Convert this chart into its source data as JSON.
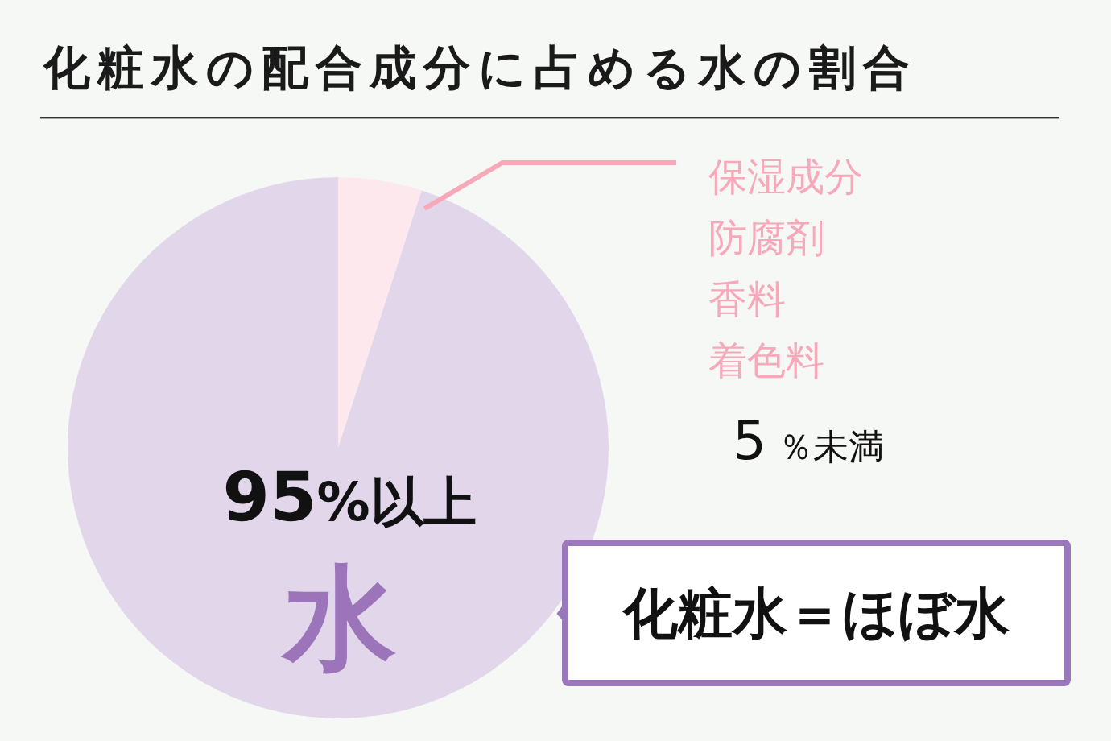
{
  "chart_data": {
    "type": "pie",
    "title": "化粧水の配合成分に占める水の割合",
    "categories": [
      "保湿成分防腐剤香料着色料",
      "水"
    ],
    "values": [
      5,
      95
    ],
    "colors": [
      "#fde9ed",
      "#e1d6ea"
    ],
    "value_labels": [
      "5 ％未満",
      "95%以上"
    ],
    "annotations": [
      "化粧水＝ほぼ水"
    ]
  }
}
